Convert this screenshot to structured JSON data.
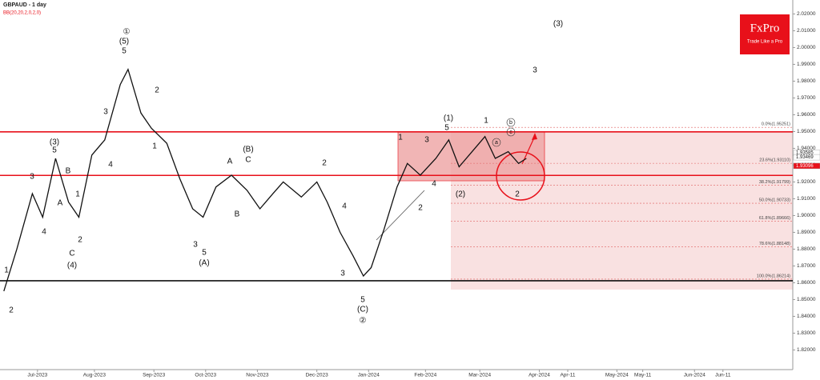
{
  "chart_data": {
    "type": "line",
    "title": "GBPAUD - 1 day",
    "subtitle": "BB(20,20,2,0,2,0)",
    "x": [
      -13,
      -8,
      -2,
      2,
      7,
      12,
      16,
      21,
      26,
      32,
      35,
      40,
      44,
      50,
      55,
      60,
      64,
      69,
      75,
      81,
      86,
      91,
      95,
      102,
      108,
      112,
      117,
      122,
      126,
      129,
      134,
      139,
      143,
      148,
      154,
      159,
      163,
      168,
      173,
      177,
      182,
      186,
      189
    ],
    "values": [
      1.855,
      1.88,
      1.913,
      1.899,
      1.934,
      1.908,
      1.899,
      1.936,
      1.945,
      1.978,
      1.987,
      1.961,
      1.952,
      1.943,
      1.922,
      1.904,
      1.899,
      1.917,
      1.924,
      1.915,
      1.904,
      1.913,
      1.92,
      1.911,
      1.92,
      1.908,
      1.89,
      1.876,
      1.864,
      1.869,
      1.892,
      1.917,
      1.931,
      1.924,
      1.934,
      1.945,
      1.929,
      1.938,
      1.947,
      1.934,
      1.938,
      1.931,
      1.934
    ],
    "color": "#111111",
    "xlim": [
      -14.5,
      292
    ],
    "xticks": [
      {
        "value": 0,
        "label": "Jul-2023"
      },
      {
        "value": 22,
        "label": "Aug-2023"
      },
      {
        "value": 45,
        "label": "Sep-2023"
      },
      {
        "value": 65,
        "label": "Oct-2023"
      },
      {
        "value": 85,
        "label": "Nov-2023"
      },
      {
        "value": 108,
        "label": "Dec-2023"
      },
      {
        "value": 128,
        "label": "Jan-2024"
      },
      {
        "value": 150,
        "label": "Feb-2024"
      },
      {
        "value": 171,
        "label": "Mar-2024"
      },
      {
        "value": 194,
        "label": "Apr-2024"
      },
      {
        "value": 205,
        "label": "Apr-11"
      },
      {
        "value": 224,
        "label": "May-2024"
      },
      {
        "value": 234,
        "label": "May-11"
      },
      {
        "value": 254,
        "label": "Jun-2024"
      },
      {
        "value": 265,
        "label": "Jun-11"
      }
    ],
    "ylim": [
      2.0283,
      1.8083
    ],
    "yticks": [
      {
        "value": 2.02,
        "label": "2.02000"
      },
      {
        "value": 2.01,
        "label": "2.01000"
      },
      {
        "value": 2.0,
        "label": "2.00000"
      },
      {
        "value": 1.99,
        "label": "1.99000"
      },
      {
        "value": 1.98,
        "label": "1.98000"
      },
      {
        "value": 1.97,
        "label": "1.97000"
      },
      {
        "value": 1.96,
        "label": "1.96000"
      },
      {
        "value": 1.95,
        "label": "1.95000"
      },
      {
        "value": 1.94,
        "label": "1.94000"
      },
      {
        "value": 1.93,
        "label": "1.93000"
      },
      {
        "value": 1.92,
        "label": "1.92000"
      },
      {
        "value": 1.91,
        "label": "1.91000"
      },
      {
        "value": 1.9,
        "label": "1.90000"
      },
      {
        "value": 1.89,
        "label": "1.89000"
      },
      {
        "value": 1.88,
        "label": "1.88000"
      },
      {
        "value": 1.87,
        "label": "1.87000"
      },
      {
        "value": 1.86,
        "label": "1.86000"
      },
      {
        "value": 1.85,
        "label": "1.85000"
      },
      {
        "value": 1.84,
        "label": "1.84000"
      },
      {
        "value": 1.83,
        "label": "1.83000"
      },
      {
        "value": 1.82,
        "label": "1.82000"
      }
    ],
    "fib_levels": [
      {
        "value": 1.95251,
        "label": "0.0%(1.95251)"
      },
      {
        "value": 1.9311,
        "label": "23.6%(1.93110)"
      },
      {
        "value": 1.91799,
        "label": "38.2%(1.91799)"
      },
      {
        "value": 1.90733,
        "label": "50.0%(1.90733)"
      },
      {
        "value": 1.89666,
        "label": "61.8%(1.89666)"
      },
      {
        "value": 1.88148,
        "label": "78.6%(1.88148)"
      },
      {
        "value": 1.86214,
        "label": "100.0%(1.86214)"
      }
    ],
    "horizontal_lines": [
      {
        "value": 1.9498,
        "color": "#e8101a"
      },
      {
        "value": 1.9239,
        "color": "#e8101a"
      },
      {
        "value": 1.8612,
        "color": "#111111"
      }
    ],
    "price_tags": [
      {
        "value": 1.93585,
        "label": "1.93585"
      },
      {
        "value": 1.93469,
        "label": "1.93469"
      },
      {
        "value": 1.93096,
        "label": "1.93096"
      }
    ],
    "annotations": [
      "①",
      "(5)",
      "5",
      "3",
      "4",
      "(3)",
      "5",
      "3",
      "4",
      "A",
      "B",
      "1",
      "2",
      "C",
      "(4)",
      "1",
      "2",
      "2",
      "1",
      "A",
      "(B)",
      "C",
      "B",
      "3",
      "5",
      "(A)",
      "2",
      "4",
      "3",
      "5",
      "(C)",
      "②",
      "(1)",
      "5",
      "1",
      "3",
      "4",
      "2",
      "(2)",
      "1",
      "2",
      "3",
      "(3)",
      "b",
      "c",
      "a"
    ]
  },
  "branding": {
    "name": "FxPro",
    "tagline": "Trade Like a Pro"
  }
}
